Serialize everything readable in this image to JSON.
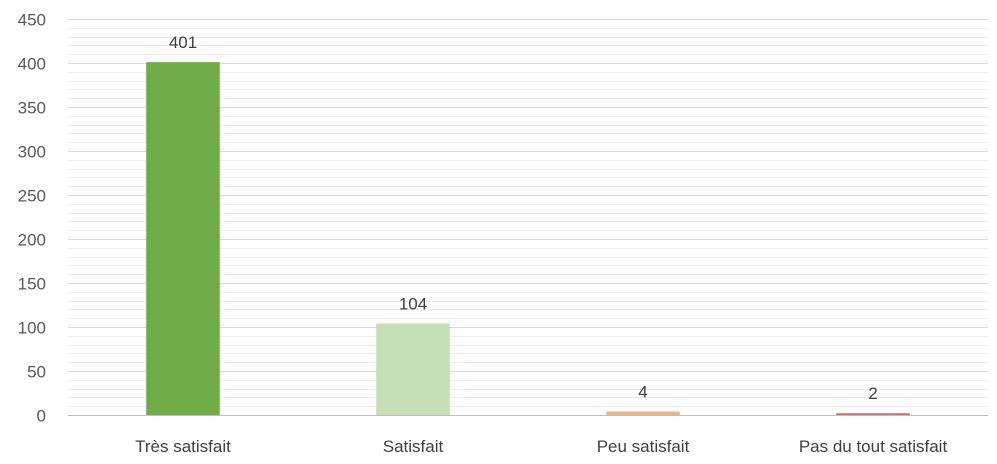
{
  "chart_data": {
    "type": "bar",
    "title": "",
    "xlabel": "",
    "ylabel": "",
    "categories": [
      "Très satisfait",
      "Satisfait",
      "Peu satisfait",
      "Pas du tout satisfait"
    ],
    "values": [
      401,
      104,
      4,
      2
    ],
    "data_labels": [
      "401",
      "104",
      "4",
      "2"
    ],
    "colors": [
      "#70ad47",
      "#c5e0b4",
      "#f4b183",
      "#e06666"
    ],
    "ylim": [
      0,
      450
    ],
    "yticks": [
      0,
      50,
      100,
      150,
      200,
      250,
      300,
      350,
      400,
      450
    ],
    "ytick_labels": [
      "0",
      "50",
      "100",
      "150",
      "200",
      "250",
      "300",
      "350",
      "400",
      "450"
    ],
    "minor_step": 10,
    "grid": true,
    "legend": "none"
  }
}
